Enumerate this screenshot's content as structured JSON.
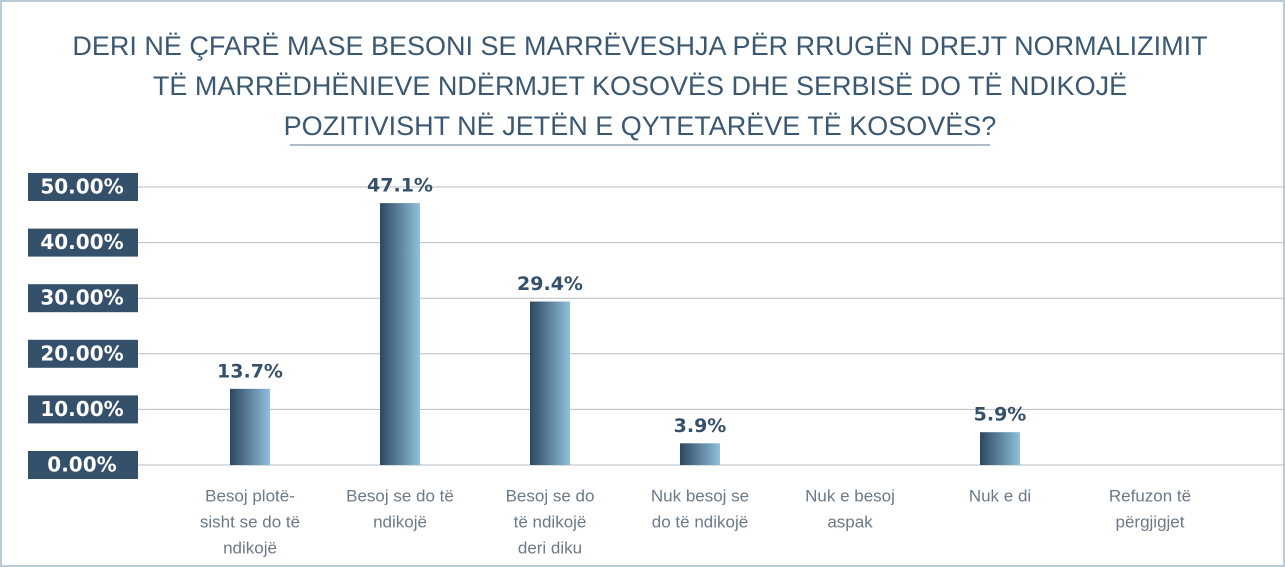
{
  "chart_data": {
    "type": "bar",
    "title": [
      "DERI NË ÇFARË MASE BESONI SE MARRËVESHJA PËR RRUGËN DREJT NORMALIZIMIT",
      "TË MARRËDHËNIEVE NDËRMJET KOSOVËS DHE SERBISË DO TË NDIKOJË",
      "POZITIVISHT NË JETËN E QYTETARËVE TË KOSOVËS?"
    ],
    "categories": [
      [
        "Besoj plotë-",
        "sisht se do të",
        "ndikojë"
      ],
      [
        "Besoj se do të",
        "ndikojë"
      ],
      [
        "Besoj se do",
        "të ndikojë",
        "deri diku"
      ],
      [
        "Nuk besoj se",
        "do të ndikojë"
      ],
      [
        "Nuk e besoj",
        "aspak"
      ],
      [
        "Nuk e di"
      ],
      [
        "Refuzon të",
        "përgjigjet"
      ]
    ],
    "values": [
      13.7,
      47.1,
      29.4,
      3.9,
      null,
      5.9,
      null
    ],
    "value_labels": [
      "13.7%",
      "47.1%",
      "29.4%",
      "3.9%",
      null,
      "5.9%",
      null
    ],
    "color": [
      "#2e4760",
      "#8fc0dc"
    ],
    "ylim": [
      0,
      50
    ],
    "yticks": [
      {
        "value": 0,
        "label": "0.00%"
      },
      {
        "value": 10,
        "label": "10.00%"
      },
      {
        "value": 20,
        "label": "20.00%"
      },
      {
        "value": 30,
        "label": "30.00%"
      },
      {
        "value": 40,
        "label": "40.00%"
      },
      {
        "value": 50,
        "label": "50.00%"
      }
    ],
    "grid": true
  }
}
